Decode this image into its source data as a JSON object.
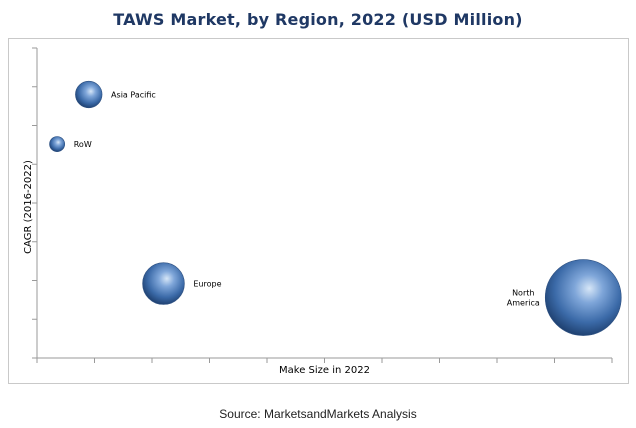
{
  "title": "TAWS Market, by Region, 2022 (USD Million)",
  "source": "Source:  MarketsandMarkets Analysis",
  "chart_data": {
    "type": "bubble",
    "title": "TAWS Market, by Region, 2022 (USD Million)",
    "xlabel": "Make Size in 2022",
    "ylabel": "CAGR (2016-2022)",
    "xlim": [
      0,
      10
    ],
    "ylim": [
      0,
      10
    ],
    "x_ticks": 10,
    "y_ticks": 8,
    "grid": false,
    "legend": "none",
    "units": "relative",
    "series": [
      {
        "label": "Asia Pacific",
        "label_lines": [
          "Asia Pacific"
        ],
        "x": 0.9,
        "y": 8.5,
        "size": 0.35,
        "label_side": "right"
      },
      {
        "label": "RoW",
        "label_lines": [
          "RoW"
        ],
        "x": 0.35,
        "y": 6.9,
        "size": 0.2,
        "label_side": "right"
      },
      {
        "label": "Europe",
        "label_lines": [
          "Europe"
        ],
        "x": 2.2,
        "y": 2.4,
        "size": 0.55,
        "label_side": "right"
      },
      {
        "label": "North America",
        "label_lines": [
          "North",
          "America"
        ],
        "x": 9.5,
        "y": 1.95,
        "size": 1.0,
        "label_side": "left"
      }
    ],
    "bubble_color": "#3d6fb0"
  }
}
